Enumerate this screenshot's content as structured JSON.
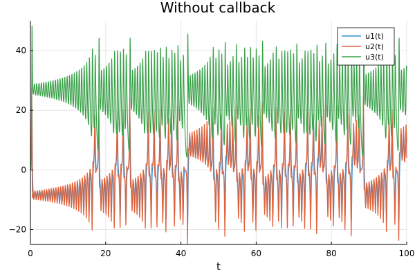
{
  "chart_data": {
    "type": "line",
    "title": "Without callback",
    "xlabel": "t",
    "ylabel": "",
    "xlim": [
      0,
      100
    ],
    "ylim": [
      -25,
      50
    ],
    "xticks": [
      0,
      20,
      40,
      60,
      80,
      100
    ],
    "yticks": [
      -20,
      0,
      20,
      40
    ],
    "grid": true,
    "legend": "top-right",
    "series": [
      {
        "name": "u1(t)",
        "color": "#3a8fd1"
      },
      {
        "name": "u2(t)",
        "color": "#e0623a"
      },
      {
        "name": "u3(t)",
        "color": "#3aa14a"
      }
    ]
  }
}
